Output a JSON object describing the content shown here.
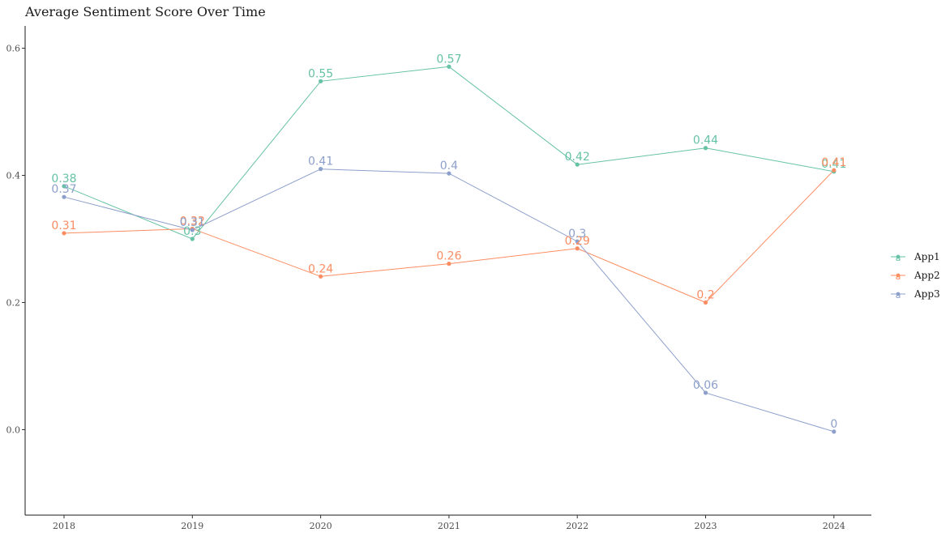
{
  "chart_data": {
    "type": "line",
    "title": "Average Sentiment Score Over Time",
    "xlabel": "",
    "ylabel": "",
    "x": [
      "2018",
      "2019",
      "2020",
      "2021",
      "2022",
      "2023",
      "2024"
    ],
    "ylim": [
      -0.13,
      0.63
    ],
    "yticks": [
      0.0,
      0.2,
      0.4,
      0.6
    ],
    "ytick_labels": [
      "0.0",
      "0.2",
      "0.4",
      "0.6"
    ],
    "grid": false,
    "legend_position": "right",
    "series": [
      {
        "name": "App1",
        "color": "#66c2a5",
        "values": [
          0.383,
          0.3,
          0.548,
          0.571,
          0.417,
          0.443,
          0.406
        ],
        "labels": [
          "0.38",
          "0.3",
          "0.55",
          "0.57",
          "0.42",
          "0.44",
          "0.41"
        ]
      },
      {
        "name": "App2",
        "color": "#fc8d62",
        "values": [
          0.309,
          0.316,
          0.241,
          0.261,
          0.285,
          0.2,
          0.408
        ],
        "labels": [
          "0.31",
          "0.32",
          "0.24",
          "0.26",
          "0.29",
          "0.2",
          "0.41"
        ]
      },
      {
        "name": "App3",
        "color": "#8da0cb",
        "values": [
          0.366,
          0.314,
          0.41,
          0.403,
          0.296,
          0.058,
          -0.003
        ],
        "labels": [
          "0.37",
          "0.31",
          "0.41",
          "0.4",
          "0.3",
          "0.06",
          "0"
        ]
      }
    ]
  },
  "legend": {
    "key_glyph": "a"
  }
}
